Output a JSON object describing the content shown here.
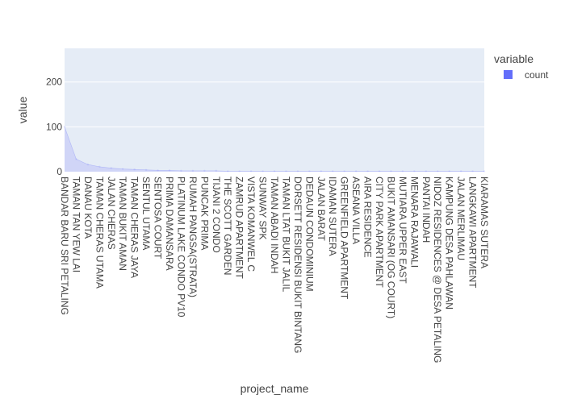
{
  "chart_data": {
    "type": "area",
    "xlabel": "project_name",
    "ylabel": "value",
    "ylim": [
      0,
      275
    ],
    "yticks": [
      0,
      100,
      200
    ],
    "grid": true,
    "legend": {
      "title": "variable",
      "position": "top-right",
      "entries": [
        {
          "name": "count",
          "color": "#636efa"
        }
      ]
    },
    "colors": {
      "plot_background": "#e5ecf6",
      "grid": "#ffffff",
      "area_fill": "#d0d5f7",
      "area_line": "#636efa"
    },
    "tick_labels": [
      "BANDAR BARU SRI PETALING",
      "TAMAN TAN YEW LAI",
      "DANAU KOTA",
      "TAMAN CHERAS UTAMA",
      "JALAN CHERAS",
      "TAMAN BUKIT AMAN",
      "TAMAN CHERAS JAYA",
      "SENTUL UTAMA",
      "SENTOSA COURT",
      "PRIMA DAMANSARA",
      "PLATINUM LAKE CONDO PV10",
      "RUMAH PANGSA(STRATA)",
      "PUNCAK PRIMA",
      "TIJANI 2 CONDO",
      "THE SCOTT GARDEN",
      "ZAMRUD APARTMENT",
      "VISTA KOMANWEL C",
      "SUNWAY SPK",
      "TAMAN ABADI INDAH",
      "TAMAN LTAT BUKIT JALIL",
      "DORSETT RESIDENSI BUKIT BINTANG",
      "DEDAUN CONDOMINIUM",
      "JALAN BARAT",
      "IDAMAN SUTERA",
      "GREENFIELD APARTMENT",
      "ASEANA VILLA",
      "AIRA RESIDENCE",
      "CITY PARK APARTMENT",
      "BUKIT AMANSARI (OG COURT)",
      "MUTIARA UPPER EAST",
      "MENARA RAJAWALI",
      "PANTAI INDAH",
      "NIDOZ RESIDENCES @ DESA PETALING",
      "KAMPUNG DESA PAHLAWAN",
      "JALAN MERLIMAU",
      "LANGKAWI APARTMENT",
      "KIARAMAS SUTERA"
    ],
    "series": [
      {
        "name": "count",
        "values": [
          100,
          28,
          16,
          11,
          8,
          6,
          5,
          4,
          3,
          3,
          2,
          2,
          2,
          2,
          1,
          1,
          1,
          1,
          1,
          1,
          1,
          1,
          1,
          1,
          1,
          1,
          1,
          1,
          1,
          1,
          1,
          1,
          1,
          1,
          1,
          1,
          1
        ]
      }
    ]
  }
}
